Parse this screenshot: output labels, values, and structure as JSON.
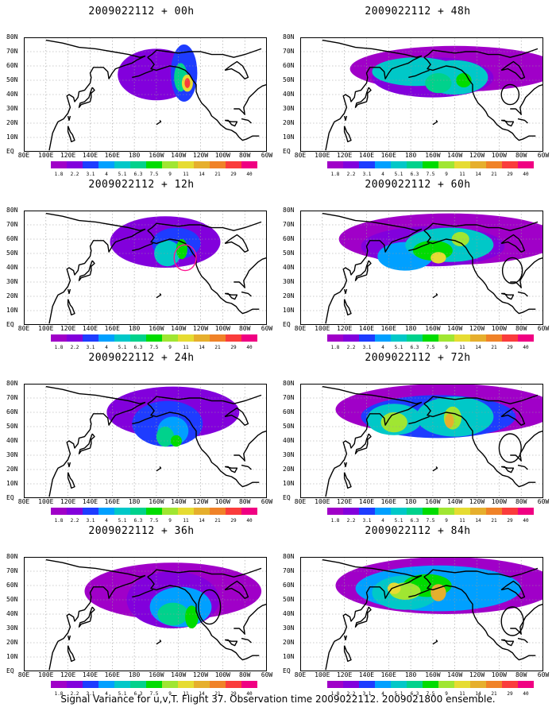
{
  "panels": [
    {
      "title": "2009022112 + 00h",
      "stage": 0
    },
    {
      "title": "2009022112 + 48h",
      "stage": 4
    },
    {
      "title": "2009022112 + 12h",
      "stage": 1
    },
    {
      "title": "2009022112 + 60h",
      "stage": 5
    },
    {
      "title": "2009022112 + 24h",
      "stage": 2
    },
    {
      "title": "2009022112 + 72h",
      "stage": 6
    },
    {
      "title": "2009022112 + 36h",
      "stage": 3
    },
    {
      "title": "2009022112 + 84h",
      "stage": 7
    }
  ],
  "lat_labels": [
    "80N",
    "70N",
    "60N",
    "50N",
    "40N",
    "30N",
    "20N",
    "10N",
    "EQ"
  ],
  "lon_labels": [
    "80E",
    "100E",
    "120E",
    "140E",
    "160E",
    "180",
    "160W",
    "140W",
    "120W",
    "100W",
    "80W",
    "60W"
  ],
  "colorbar": {
    "labels": [
      "1.8",
      "2.2",
      "3.1",
      "4",
      "5.1",
      "6.3",
      "7.5",
      "9",
      "11",
      "14",
      "21",
      "29",
      "40"
    ],
    "colors": [
      "#a000c8",
      "#8200dc",
      "#1e3cff",
      "#00a0ff",
      "#00c8c8",
      "#00d28c",
      "#00dc00",
      "#a0e632",
      "#e6dc32",
      "#e6af2d",
      "#f08228",
      "#fa3c3c",
      "#f00082"
    ]
  },
  "footer": "Signal Variance for u,v,T. Flight 37. Observation time 2009022112. 2009021800 ensemble."
}
